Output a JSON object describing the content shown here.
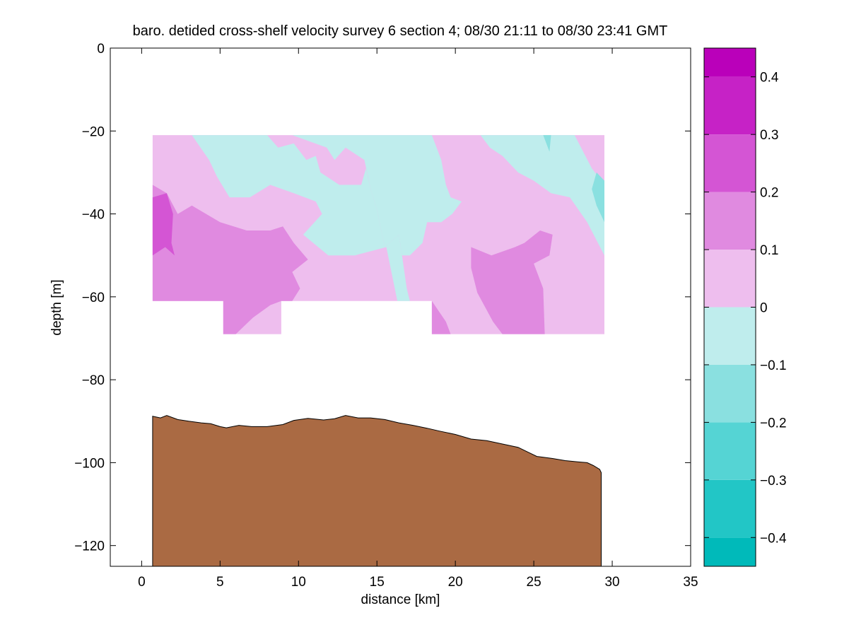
{
  "chart_data": {
    "type": "contour",
    "title": "baro. detided cross-shelf velocity survey 6 section 4; 08/30 21:11 to 08/30 23:41 GMT",
    "xlabel": "distance [km]",
    "ylabel": "depth [m]",
    "xlim": [
      -2,
      35
    ],
    "ylim": [
      -125,
      0
    ],
    "x_ticks": [
      0,
      5,
      10,
      15,
      20,
      25,
      30,
      35
    ],
    "y_ticks": [
      0,
      -20,
      -40,
      -60,
      -80,
      -100,
      -120
    ],
    "data_extent": {
      "x": [
        0.7,
        29.5
      ],
      "top_depth": -21,
      "bottom_depth_main": -61,
      "bottom_depth_deep": -69,
      "deep_segments": [
        [
          5.2,
          8.9
        ],
        [
          18.5,
          29.5
        ]
      ]
    },
    "colorbar": {
      "levels": [
        -0.45,
        -0.4,
        -0.3,
        -0.2,
        -0.1,
        0,
        0.1,
        0.2,
        0.3,
        0.4,
        0.45
      ],
      "tick_values": [
        0.4,
        0.3,
        0.2,
        0.1,
        0,
        -0.1,
        -0.2,
        -0.3,
        -0.4
      ],
      "tick_labels": [
        "0.4",
        "0.3",
        "0.2",
        "0.1",
        "0",
        "−0.1",
        "−0.2",
        "−0.3",
        "−0.4"
      ],
      "colors": [
        "#00BABA",
        "#22C6C6",
        "#55D4D4",
        "#8AE0E0",
        "#BFEDED",
        "#EEBEEE",
        "#E08AE0",
        "#D455D4",
        "#C622C6",
        "#BA00BA"
      ]
    },
    "regions": [
      {
        "name": "positive-weak",
        "value_range": [
          0,
          0.1
        ],
        "color": "#EEBEEE",
        "points": [
          [
            0.7,
            -21
          ],
          [
            29.5,
            -21
          ],
          [
            29.5,
            -69
          ],
          [
            18.5,
            -69
          ],
          [
            18.5,
            -61
          ],
          [
            8.9,
            -61
          ],
          [
            8.9,
            -69
          ],
          [
            5.2,
            -69
          ],
          [
            5.2,
            -61
          ],
          [
            0.7,
            -61
          ]
        ]
      },
      {
        "name": "negative-weak-a",
        "value_range": [
          -0.1,
          0
        ],
        "color": "#BFEDED",
        "points": [
          [
            3.2,
            -21
          ],
          [
            8.0,
            -21
          ],
          [
            8.7,
            -24
          ],
          [
            9.7,
            -23
          ],
          [
            10.5,
            -27
          ],
          [
            11.1,
            -26
          ],
          [
            11.4,
            -30
          ],
          [
            12.6,
            -33
          ],
          [
            14.0,
            -33
          ],
          [
            14.3,
            -29
          ],
          [
            14.6,
            -34
          ],
          [
            15.0,
            -39
          ],
          [
            15.5,
            -48
          ],
          [
            16.4,
            -45
          ],
          [
            16.6,
            -50
          ],
          [
            16.9,
            -58
          ],
          [
            17.1,
            -61
          ],
          [
            16.3,
            -61
          ],
          [
            15.6,
            -48
          ],
          [
            13.6,
            -50
          ],
          [
            11.9,
            -50
          ],
          [
            10.3,
            -45
          ],
          [
            11.5,
            -40
          ],
          [
            11.1,
            -37
          ],
          [
            9.7,
            -35
          ],
          [
            8.2,
            -33
          ],
          [
            6.9,
            -36
          ],
          [
            5.6,
            -36
          ],
          [
            4.8,
            -31
          ],
          [
            4.3,
            -27
          ]
        ]
      },
      {
        "name": "negative-weak-b",
        "value_range": [
          -0.1,
          0
        ],
        "color": "#BFEDED",
        "points": [
          [
            9.6,
            -21
          ],
          [
            18.5,
            -21
          ],
          [
            19.1,
            -27
          ],
          [
            19.4,
            -33
          ],
          [
            19.7,
            -36
          ],
          [
            20.4,
            -37
          ],
          [
            19.8,
            -40
          ],
          [
            19.1,
            -42
          ],
          [
            18.2,
            -42
          ],
          [
            17.9,
            -47
          ],
          [
            17.1,
            -50
          ],
          [
            16.6,
            -50
          ],
          [
            16.4,
            -45
          ],
          [
            15.5,
            -48
          ],
          [
            15.0,
            -39
          ],
          [
            14.6,
            -34
          ],
          [
            14.2,
            -27
          ],
          [
            13.0,
            -24
          ],
          [
            12.3,
            -27
          ],
          [
            11.8,
            -24
          ]
        ]
      },
      {
        "name": "negative-weak-c",
        "value_range": [
          -0.1,
          0
        ],
        "color": "#BFEDED",
        "points": [
          [
            21.6,
            -21
          ],
          [
            27.6,
            -21
          ],
          [
            28.7,
            -29
          ],
          [
            29.5,
            -33
          ],
          [
            29.5,
            -50
          ],
          [
            28.4,
            -42
          ],
          [
            27.3,
            -36
          ],
          [
            26.1,
            -35
          ],
          [
            25.0,
            -32
          ],
          [
            24.0,
            -30
          ],
          [
            23.0,
            -26
          ],
          [
            22.2,
            -24
          ]
        ]
      },
      {
        "name": "negative-mid",
        "value_range": [
          -0.2,
          -0.1
        ],
        "color": "#8AE0E0",
        "points": [
          [
            29.0,
            -30
          ],
          [
            29.5,
            -32
          ],
          [
            29.5,
            -42
          ],
          [
            29.0,
            -38
          ],
          [
            28.7,
            -34
          ]
        ]
      },
      {
        "name": "negative-mid-small",
        "value_range": [
          -0.2,
          -0.1
        ],
        "color": "#8AE0E0",
        "points": [
          [
            25.6,
            -21
          ],
          [
            26.1,
            -21
          ],
          [
            26.0,
            -25
          ]
        ]
      },
      {
        "name": "positive-mid-west",
        "value_range": [
          0.1,
          0.2
        ],
        "color": "#E08AE0",
        "points": [
          [
            0.7,
            -33
          ],
          [
            1.6,
            -35
          ],
          [
            2.3,
            -40
          ],
          [
            3.2,
            -38
          ],
          [
            5.0,
            -42
          ],
          [
            6.7,
            -44
          ],
          [
            8.2,
            -44
          ],
          [
            9.0,
            -43
          ],
          [
            9.7,
            -47
          ],
          [
            10.6,
            -51
          ],
          [
            9.6,
            -54
          ],
          [
            10.1,
            -58
          ],
          [
            9.6,
            -61
          ],
          [
            8.9,
            -61
          ],
          [
            8.2,
            -62
          ],
          [
            7.1,
            -65
          ],
          [
            6.0,
            -69
          ],
          [
            5.2,
            -69
          ],
          [
            5.2,
            -61
          ],
          [
            0.7,
            -61
          ]
        ]
      },
      {
        "name": "positive-mid-east",
        "value_range": [
          0.1,
          0.2
        ],
        "color": "#E08AE0",
        "points": [
          [
            21.0,
            -48
          ],
          [
            22.3,
            -50
          ],
          [
            23.8,
            -48
          ],
          [
            24.4,
            -47
          ],
          [
            25.4,
            -44
          ],
          [
            26.2,
            -45
          ],
          [
            26.0,
            -50
          ],
          [
            25.0,
            -52
          ],
          [
            25.6,
            -58
          ],
          [
            25.7,
            -69
          ],
          [
            23.0,
            -69
          ],
          [
            22.4,
            -66
          ],
          [
            21.4,
            -59
          ],
          [
            21.0,
            -53
          ]
        ]
      },
      {
        "name": "positive-mid-small",
        "value_range": [
          0.1,
          0.2
        ],
        "color": "#E08AE0",
        "points": [
          [
            18.5,
            -61
          ],
          [
            19.4,
            -66
          ],
          [
            19.7,
            -69
          ],
          [
            18.5,
            -69
          ]
        ]
      },
      {
        "name": "positive-strong",
        "value_range": [
          0.2,
          0.3
        ],
        "color": "#D455D4",
        "points": [
          [
            0.7,
            -36
          ],
          [
            1.6,
            -35
          ],
          [
            2.0,
            -40
          ],
          [
            1.9,
            -47
          ],
          [
            2.1,
            -50
          ],
          [
            1.5,
            -48
          ],
          [
            0.7,
            -50
          ]
        ]
      }
    ],
    "bathymetry": {
      "fill": "#AA6A43",
      "points": [
        [
          0.7,
          -88.8
        ],
        [
          1.2,
          -89.2
        ],
        [
          1.6,
          -88.6
        ],
        [
          2.3,
          -89.6
        ],
        [
          3.0,
          -90.0
        ],
        [
          3.8,
          -90.4
        ],
        [
          4.4,
          -90.6
        ],
        [
          5.0,
          -91.3
        ],
        [
          5.4,
          -91.6
        ],
        [
          6.2,
          -91.0
        ],
        [
          7.0,
          -91.3
        ],
        [
          8.0,
          -91.3
        ],
        [
          9.0,
          -90.8
        ],
        [
          9.7,
          -89.8
        ],
        [
          10.6,
          -89.3
        ],
        [
          11.6,
          -89.7
        ],
        [
          12.3,
          -89.4
        ],
        [
          13.0,
          -88.6
        ],
        [
          13.8,
          -89.2
        ],
        [
          14.6,
          -89.2
        ],
        [
          15.5,
          -89.6
        ],
        [
          16.4,
          -90.4
        ],
        [
          17.3,
          -91.0
        ],
        [
          18.2,
          -91.7
        ],
        [
          19.0,
          -92.4
        ],
        [
          20.0,
          -93.2
        ],
        [
          21.0,
          -94.3
        ],
        [
          22.0,
          -94.7
        ],
        [
          23.0,
          -95.5
        ],
        [
          24.0,
          -96.3
        ],
        [
          24.6,
          -97.4
        ],
        [
          25.2,
          -98.5
        ],
        [
          26.2,
          -99.0
        ],
        [
          27.0,
          -99.5
        ],
        [
          27.8,
          -99.8
        ],
        [
          28.4,
          -100.0
        ],
        [
          28.8,
          -100.7
        ],
        [
          29.2,
          -101.6
        ],
        [
          29.3,
          -102.4
        ],
        [
          29.3,
          -125
        ],
        [
          0.7,
          -125
        ]
      ]
    }
  }
}
